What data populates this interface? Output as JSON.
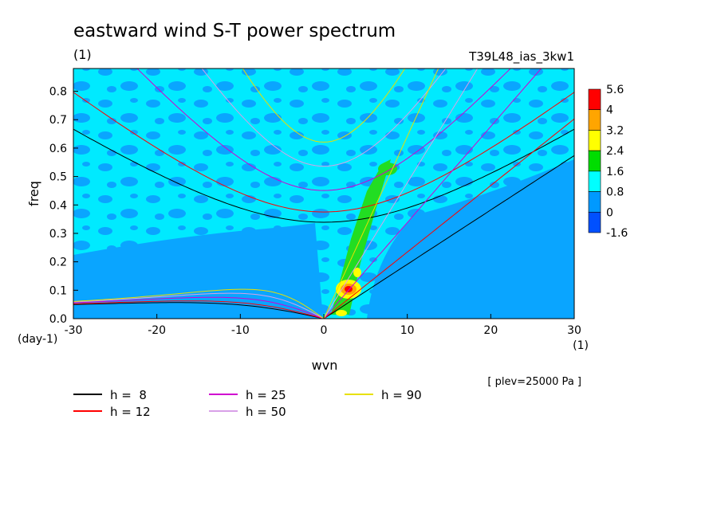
{
  "chart_data": {
    "type": "heatmap",
    "title": "eastward wind S-T power spectrum",
    "subtitle": "(1)",
    "run_label": "T39L48_ias_3kw1",
    "xlabel": "wvn",
    "ylabel": "freq",
    "x_unit": "(1)",
    "y_unit": "(day-1)",
    "level_note": "[ plev=25000 Pa ]",
    "xlim": [
      -30,
      30
    ],
    "ylim": [
      0,
      0.88
    ],
    "x_ticks": [
      -30,
      -20,
      -10,
      0,
      10,
      20,
      30
    ],
    "y_ticks": [
      0.0,
      0.1,
      0.2,
      0.3,
      0.4,
      0.5,
      0.6,
      0.7,
      0.8
    ],
    "colorbar": {
      "labels": [
        "5.6",
        "4",
        "3.2",
        "2.4",
        "1.6",
        "0.8",
        "0",
        "-1.6"
      ],
      "colors": [
        "#ff0000",
        "#ffa500",
        "#ffff00",
        "#00dd00",
        "#00ffff",
        "#0099ff",
        "#0050ff"
      ]
    },
    "legend": [
      {
        "label": "h =  8",
        "h": 8,
        "color": "#000000"
      },
      {
        "label": "h = 12",
        "h": 12,
        "color": "#ff0000"
      },
      {
        "label": "h = 25",
        "h": 25,
        "color": "#d000d0"
      },
      {
        "label": "h = 50",
        "h": 50,
        "color": "#d8a0e8"
      },
      {
        "label": "h = 90",
        "h": 90,
        "color": "#e8e000"
      }
    ],
    "grid": false
  }
}
